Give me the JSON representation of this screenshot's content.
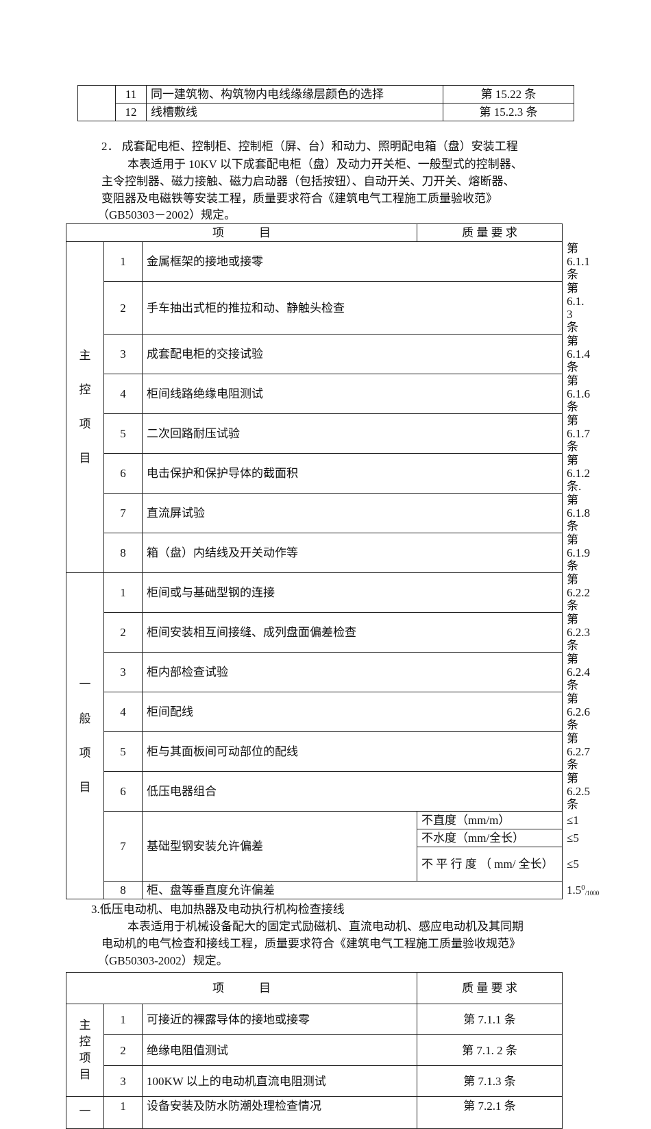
{
  "table_top": {
    "rows": [
      {
        "no": "11",
        "item": "同一建筑物、构筑物内电线缘缘层颜色的选择",
        "req": "第 15.22 条"
      },
      {
        "no": "12",
        "item": "线槽敷线",
        "req": "第 15.2.3 条"
      }
    ]
  },
  "section2": {
    "heading": "2．  成套配电柜、控制柜、控制柜（屏、台）和动力、照明配电箱（盘）安装工程",
    "lines": [
      "本表适用于 10KV 以下成套配电柜（盘）及动力开关柜、一般型式的控制器、",
      "主令控制器、磁力接触、磁力启动器（包括按钮）、自动开关、刀开关、熔断器、",
      "变阻器及电磁铁等安装工程，质量要求符合《建筑电气工程施工质量验收范》",
      "（GB50303－2002）规定。"
    ],
    "table": {
      "header_item": "项　　　目",
      "header_req": "质 量 要 求",
      "group_main": [
        "主",
        "控",
        "项",
        "目"
      ],
      "group_general": [
        "一",
        "般",
        "项",
        "目"
      ],
      "main": [
        {
          "no": "1",
          "item": "金属框架的接地或接零",
          "req": "第 6.1.1 条"
        },
        {
          "no": "2",
          "item": "手车抽出式柜的推拉和动、静触头检查",
          "req": "第 6.1. 3 条"
        },
        {
          "no": "3",
          "item": "成套配电柜的交接试验",
          "req": "第 6.1.4 条"
        },
        {
          "no": "4",
          "item": "柜间线路绝缘电阻测试",
          "req": "第 6.1.6 条"
        },
        {
          "no": "5",
          "item": "二次回路耐压试验",
          "req": "第 6.1.7 条"
        },
        {
          "no": "6",
          "item": "电击保护和保护导体的截面积",
          "req": "第 6.1.2 条."
        },
        {
          "no": "7",
          "item": "直流屏试验",
          "req": "第 6.1.8 条"
        },
        {
          "no": "8",
          "item": "箱（盘）内结线及开关动作等",
          "req": "第 6.1.9 条"
        }
      ],
      "general": [
        {
          "no": "1",
          "item": "柜间或与基础型钢的连接",
          "req": "第 6.2.2 条"
        },
        {
          "no": "2",
          "item": "柜间安装相互间接缝、成列盘面偏差检查",
          "req": "第 6.2.3 条"
        },
        {
          "no": "3",
          "item": "柜内部检查试验",
          "req": "第 6.2.4 条"
        },
        {
          "no": "4",
          "item": "柜间配线",
          "req": "第 6.2.6 条"
        },
        {
          "no": "5",
          "item": "柜与其面板间可动部位的配线",
          "req": "第 6.2.7 条"
        },
        {
          "no": "6",
          "item": "低压电器组合",
          "req": "第 6.2.5 条"
        }
      ],
      "row7": {
        "no": "7",
        "item": "基础型钢安装允许偏差",
        "subs": [
          {
            "name": "不直度（mm/m）",
            "req": "≤1"
          },
          {
            "name": "不水度（mm/全长）",
            "req": "≤5"
          },
          {
            "name": "不 平 行 度 （ mm/ 全长）",
            "req": "≤5"
          }
        ]
      },
      "row8": {
        "no": "8",
        "item": "柜、盘等垂直度允许偏差",
        "req_base": "1.5",
        "req_sup": "0",
        "req_sub": "/1000"
      }
    }
  },
  "section3": {
    "heading": "3.低压电动机、电加热器及电动执行机构检查接线",
    "lines": [
      "本表适用于机械设备配大的固定式励磁机、直流电动机、感应电动机及其同期",
      "电动机的电气检查和接线工程，质量要求符合《建筑电气工程施工质量验收规范》",
      "（GB50303-2002）规定。"
    ],
    "table": {
      "header_item": "项　　　目",
      "header_req": "质 量 要 求",
      "group_main": "主控项目",
      "group_general": "一",
      "main": [
        {
          "no": "1",
          "item": "可接近的裸露导体的接地或接零",
          "req": "第 7.1.1 条"
        },
        {
          "no": "2",
          "item": "绝缘电阻值测试",
          "req": "第 7.1. 2 条"
        },
        {
          "no": "3",
          "item": "100KW 以上的电动机直流电阻测试",
          "req": "第 7.1.3 条"
        }
      ],
      "general": [
        {
          "no": "1",
          "item": "设备安装及防水防潮处理检查情况",
          "req": "第 7.2.1 条"
        }
      ]
    }
  }
}
